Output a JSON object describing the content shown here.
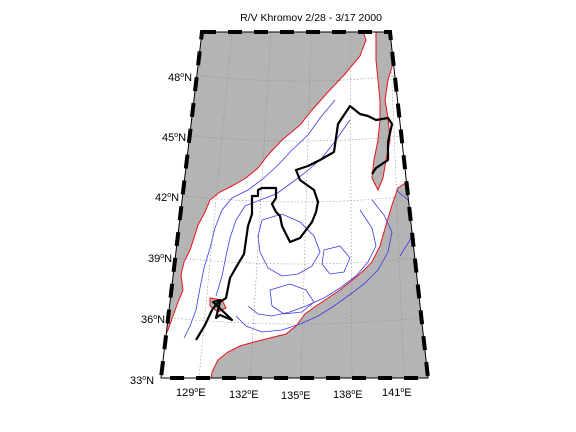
{
  "map": {
    "title": "R/V Khromov 2/28 - 3/17  2000",
    "lat_labels": [
      {
        "deg": "33",
        "hem": "N"
      },
      {
        "deg": "36",
        "hem": "N"
      },
      {
        "deg": "39",
        "hem": "N"
      },
      {
        "deg": "42",
        "hem": "N"
      },
      {
        "deg": "45",
        "hem": "N"
      },
      {
        "deg": "48",
        "hem": "N"
      }
    ],
    "lon_labels": [
      {
        "deg": "129",
        "hem": "E"
      },
      {
        "deg": "132",
        "hem": "E"
      },
      {
        "deg": "135",
        "hem": "E"
      },
      {
        "deg": "138",
        "hem": "E"
      },
      {
        "deg": "141",
        "hem": "E"
      }
    ],
    "colors": {
      "land": "#b4b4b4",
      "coastline": "#e8121e",
      "bathymetry_contours": "#3a3ae6",
      "graticule": "#8c8c8c",
      "cruise_track": "#000000"
    },
    "extent": {
      "lon": [
        127.5,
        142.5
      ],
      "lat": [
        33,
        50.5
      ]
    }
  }
}
